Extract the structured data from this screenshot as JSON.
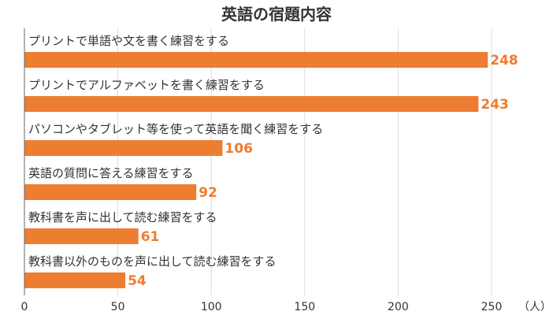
{
  "chart_data": {
    "type": "bar",
    "orientation": "horizontal",
    "title": "英語の宿題内容",
    "categories": [
      "プリントで単語や文を書く練習をする",
      "プリントでアルファベットを書く練習をする",
      "パソコンやタブレット等を使って英語を聞く練習をする",
      "英語の質問に答える練習をする",
      "教科書を声に出して読む練習をする",
      "教科書以外のものを声に出して読む練習をする"
    ],
    "values": [
      248,
      243,
      106,
      92,
      61,
      54
    ],
    "data_labels": [
      "248",
      "243",
      "106",
      "92",
      "61",
      "54"
    ],
    "x_ticks": [
      "0",
      "50",
      "100",
      "150",
      "200",
      "250"
    ],
    "x_tick_values": [
      0,
      50,
      100,
      150,
      200,
      250
    ],
    "xlim": [
      0,
      290
    ],
    "unit": "（人）",
    "grid": true,
    "legend": "none",
    "colors": {
      "bar": "#ED7D31",
      "label": "#ED7D31",
      "grid": "#dddddd",
      "axis": "#666666",
      "text": "#333333"
    }
  }
}
